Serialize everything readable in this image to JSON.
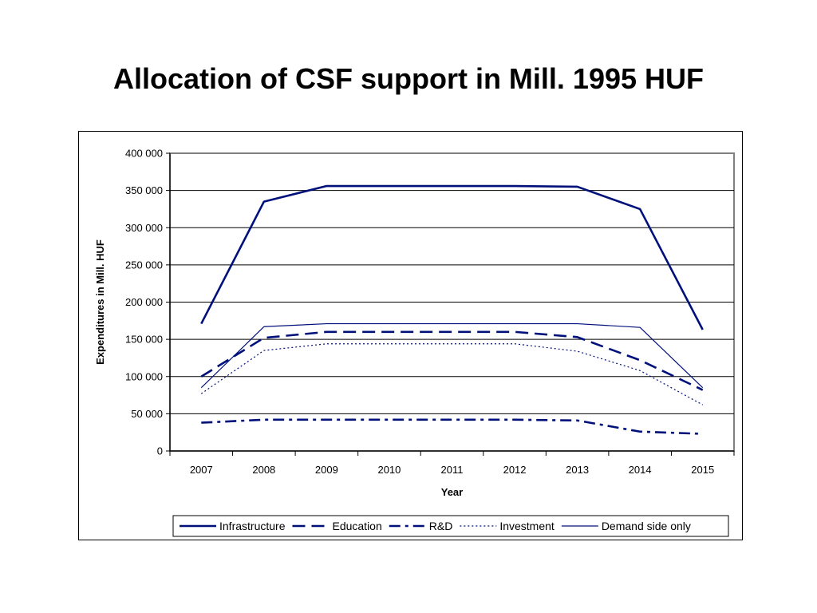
{
  "slide": {
    "title": "Allocation of CSF support in Mill. 1995 HUF"
  },
  "chart_data": {
    "type": "line",
    "title": "",
    "xlabel": "Year",
    "ylabel": "Expenditures in Mill. HUF",
    "x": [
      "2007",
      "2008",
      "2009",
      "2010",
      "2011",
      "2012",
      "2013",
      "2014",
      "2015"
    ],
    "ylim": [
      0,
      400000
    ],
    "yticks": [
      0,
      50000,
      100000,
      150000,
      200000,
      250000,
      300000,
      350000,
      400000
    ],
    "ytick_labels": [
      "0",
      "50 000",
      "100 000",
      "150 000",
      "200 000",
      "250 000",
      "300 000",
      "350 000",
      "400 000"
    ],
    "grid": true,
    "legend_position": "bottom",
    "line_color": "#00107a",
    "series": [
      {
        "name": "Infrastructure",
        "style": "solid-thick",
        "values": [
          171000,
          335000,
          356000,
          356000,
          356000,
          356000,
          355000,
          325000,
          163000
        ]
      },
      {
        "name": "Education",
        "style": "dashed",
        "values": [
          100000,
          152000,
          160000,
          160000,
          160000,
          160000,
          153000,
          122000,
          82000
        ]
      },
      {
        "name": "R&D",
        "style": "dash-dot",
        "values": [
          38000,
          42000,
          42000,
          42000,
          42000,
          42000,
          41000,
          26000,
          23000
        ]
      },
      {
        "name": "Investment",
        "style": "dotted",
        "values": [
          77000,
          135000,
          144000,
          144000,
          144000,
          144000,
          134000,
          108000,
          62000
        ]
      },
      {
        "name": "Demand side only",
        "style": "solid-thin",
        "values": [
          85000,
          167000,
          171000,
          171000,
          171000,
          171000,
          171000,
          166000,
          85000
        ]
      }
    ]
  }
}
